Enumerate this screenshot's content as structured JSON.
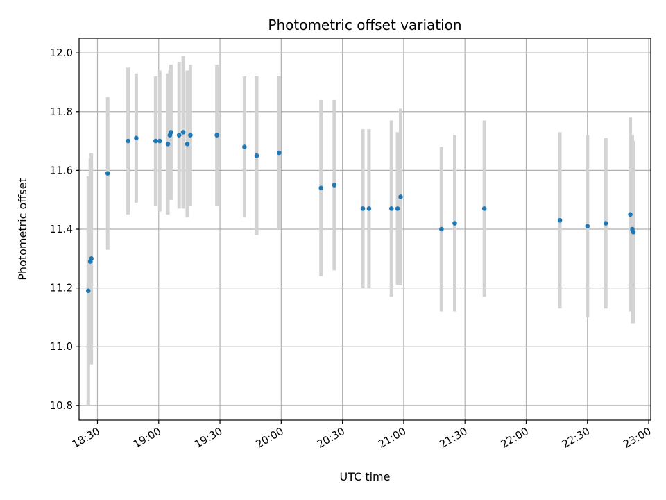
{
  "chart_data": {
    "type": "scatter",
    "title": "Photometric offset variation",
    "xlabel": "UTC time",
    "ylabel": "Photometric offset",
    "x_ticks": [
      "18:30",
      "19:00",
      "19:30",
      "20:00",
      "20:30",
      "21:00",
      "21:30",
      "22:00",
      "22:30",
      "23:00"
    ],
    "y_ticks": [
      "10.8",
      "11.0",
      "11.2",
      "11.4",
      "11.6",
      "11.8",
      "12.0"
    ],
    "xlim": [
      "18:21",
      "23:01"
    ],
    "ylim": [
      10.75,
      12.05
    ],
    "grid": true,
    "marker_color": "#1f77b4",
    "errorbar_color": "#d3d3d3",
    "points": [
      {
        "x": "18:25:30",
        "y": 11.19,
        "err": 0.39
      },
      {
        "x": "18:26:30",
        "y": 11.29,
        "err": 0.35
      },
      {
        "x": "18:27:00",
        "y": 11.3,
        "err": 0.36
      },
      {
        "x": "18:35:00",
        "y": 11.59,
        "err": 0.26
      },
      {
        "x": "18:45:00",
        "y": 11.7,
        "err": 0.25
      },
      {
        "x": "18:49:00",
        "y": 11.71,
        "err": 0.22
      },
      {
        "x": "18:58:30",
        "y": 11.7,
        "err": 0.22
      },
      {
        "x": "19:00:30",
        "y": 11.7,
        "err": 0.24
      },
      {
        "x": "19:04:30",
        "y": 11.69,
        "err": 0.24
      },
      {
        "x": "19:05:30",
        "y": 11.72,
        "err": 0.22
      },
      {
        "x": "19:06:00",
        "y": 11.73,
        "err": 0.23
      },
      {
        "x": "19:10:00",
        "y": 11.72,
        "err": 0.25
      },
      {
        "x": "19:12:00",
        "y": 11.73,
        "err": 0.26
      },
      {
        "x": "19:14:00",
        "y": 11.69,
        "err": 0.25
      },
      {
        "x": "19:15:30",
        "y": 11.72,
        "err": 0.24
      },
      {
        "x": "19:28:30",
        "y": 11.72,
        "err": 0.24
      },
      {
        "x": "19:42:00",
        "y": 11.68,
        "err": 0.24
      },
      {
        "x": "19:48:00",
        "y": 11.65,
        "err": 0.27
      },
      {
        "x": "19:59:00",
        "y": 11.66,
        "err": 0.26
      },
      {
        "x": "20:19:30",
        "y": 11.54,
        "err": 0.3
      },
      {
        "x": "20:26:00",
        "y": 11.55,
        "err": 0.29
      },
      {
        "x": "20:40:00",
        "y": 11.47,
        "err": 0.27
      },
      {
        "x": "20:43:00",
        "y": 11.47,
        "err": 0.27
      },
      {
        "x": "20:54:00",
        "y": 11.47,
        "err": 0.3
      },
      {
        "x": "20:57:00",
        "y": 11.47,
        "err": 0.26
      },
      {
        "x": "20:58:30",
        "y": 11.51,
        "err": 0.3
      },
      {
        "x": "21:18:30",
        "y": 11.4,
        "err": 0.28
      },
      {
        "x": "21:25:00",
        "y": 11.42,
        "err": 0.3
      },
      {
        "x": "21:39:30",
        "y": 11.47,
        "err": 0.3
      },
      {
        "x": "22:16:30",
        "y": 11.43,
        "err": 0.3
      },
      {
        "x": "22:30:00",
        "y": 11.41,
        "err": 0.31
      },
      {
        "x": "22:39:00",
        "y": 11.42,
        "err": 0.29
      },
      {
        "x": "22:51:00",
        "y": 11.45,
        "err": 0.33
      },
      {
        "x": "22:52:00",
        "y": 11.4,
        "err": 0.32
      },
      {
        "x": "22:52:30",
        "y": 11.39,
        "err": 0.31
      }
    ]
  }
}
